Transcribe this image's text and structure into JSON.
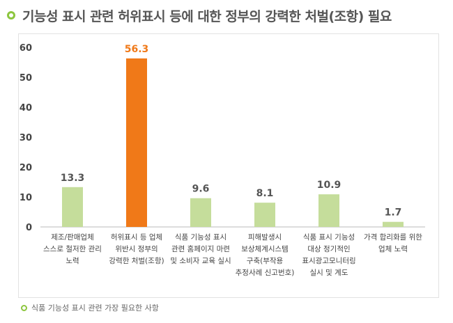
{
  "title": "기능성 표시 관련 허위표시 등에 대한 정부의 강력한 처벌(조항) 필요",
  "legend_note": "식품 기능성 표시 관련 가장 필요한 사항",
  "colors": {
    "default_bar": "#c5dd9b",
    "highlight_bar": "#f07918",
    "accent": "#8dc63f",
    "axis": "#444444"
  },
  "chart_data": {
    "type": "bar",
    "categories": [
      [
        "제조/판매업체",
        "스스로 철저한 관리",
        "노력"
      ],
      [
        "허위표시 등 업체",
        "위반시 정부의",
        "강력한 처벌(조항)"
      ],
      [
        "식품 기능성 표시",
        "관련 홈페이지 마련",
        "및 소비자 교육 실시"
      ],
      [
        "피해발생시",
        "보상체계시스템",
        "구축(부작용",
        "추정사례 신고번호)"
      ],
      [
        "식품 표시 기능성",
        "대상 정기적인",
        "표시광고모니터링",
        "실시 및 계도"
      ],
      [
        "가격 합리화를 위한",
        "업체 노력"
      ]
    ],
    "values": [
      13.3,
      56.3,
      9.6,
      8.1,
      10.9,
      1.7
    ],
    "value_labels": [
      "13.3",
      "56.3",
      "9.6",
      "8.1",
      "10.9",
      "1.7"
    ],
    "highlight_index": 1,
    "yticks": [
      "0",
      "10",
      "20",
      "30",
      "40",
      "50",
      "60"
    ],
    "ylim": [
      0,
      60
    ],
    "grid": false,
    "legend": "none"
  }
}
